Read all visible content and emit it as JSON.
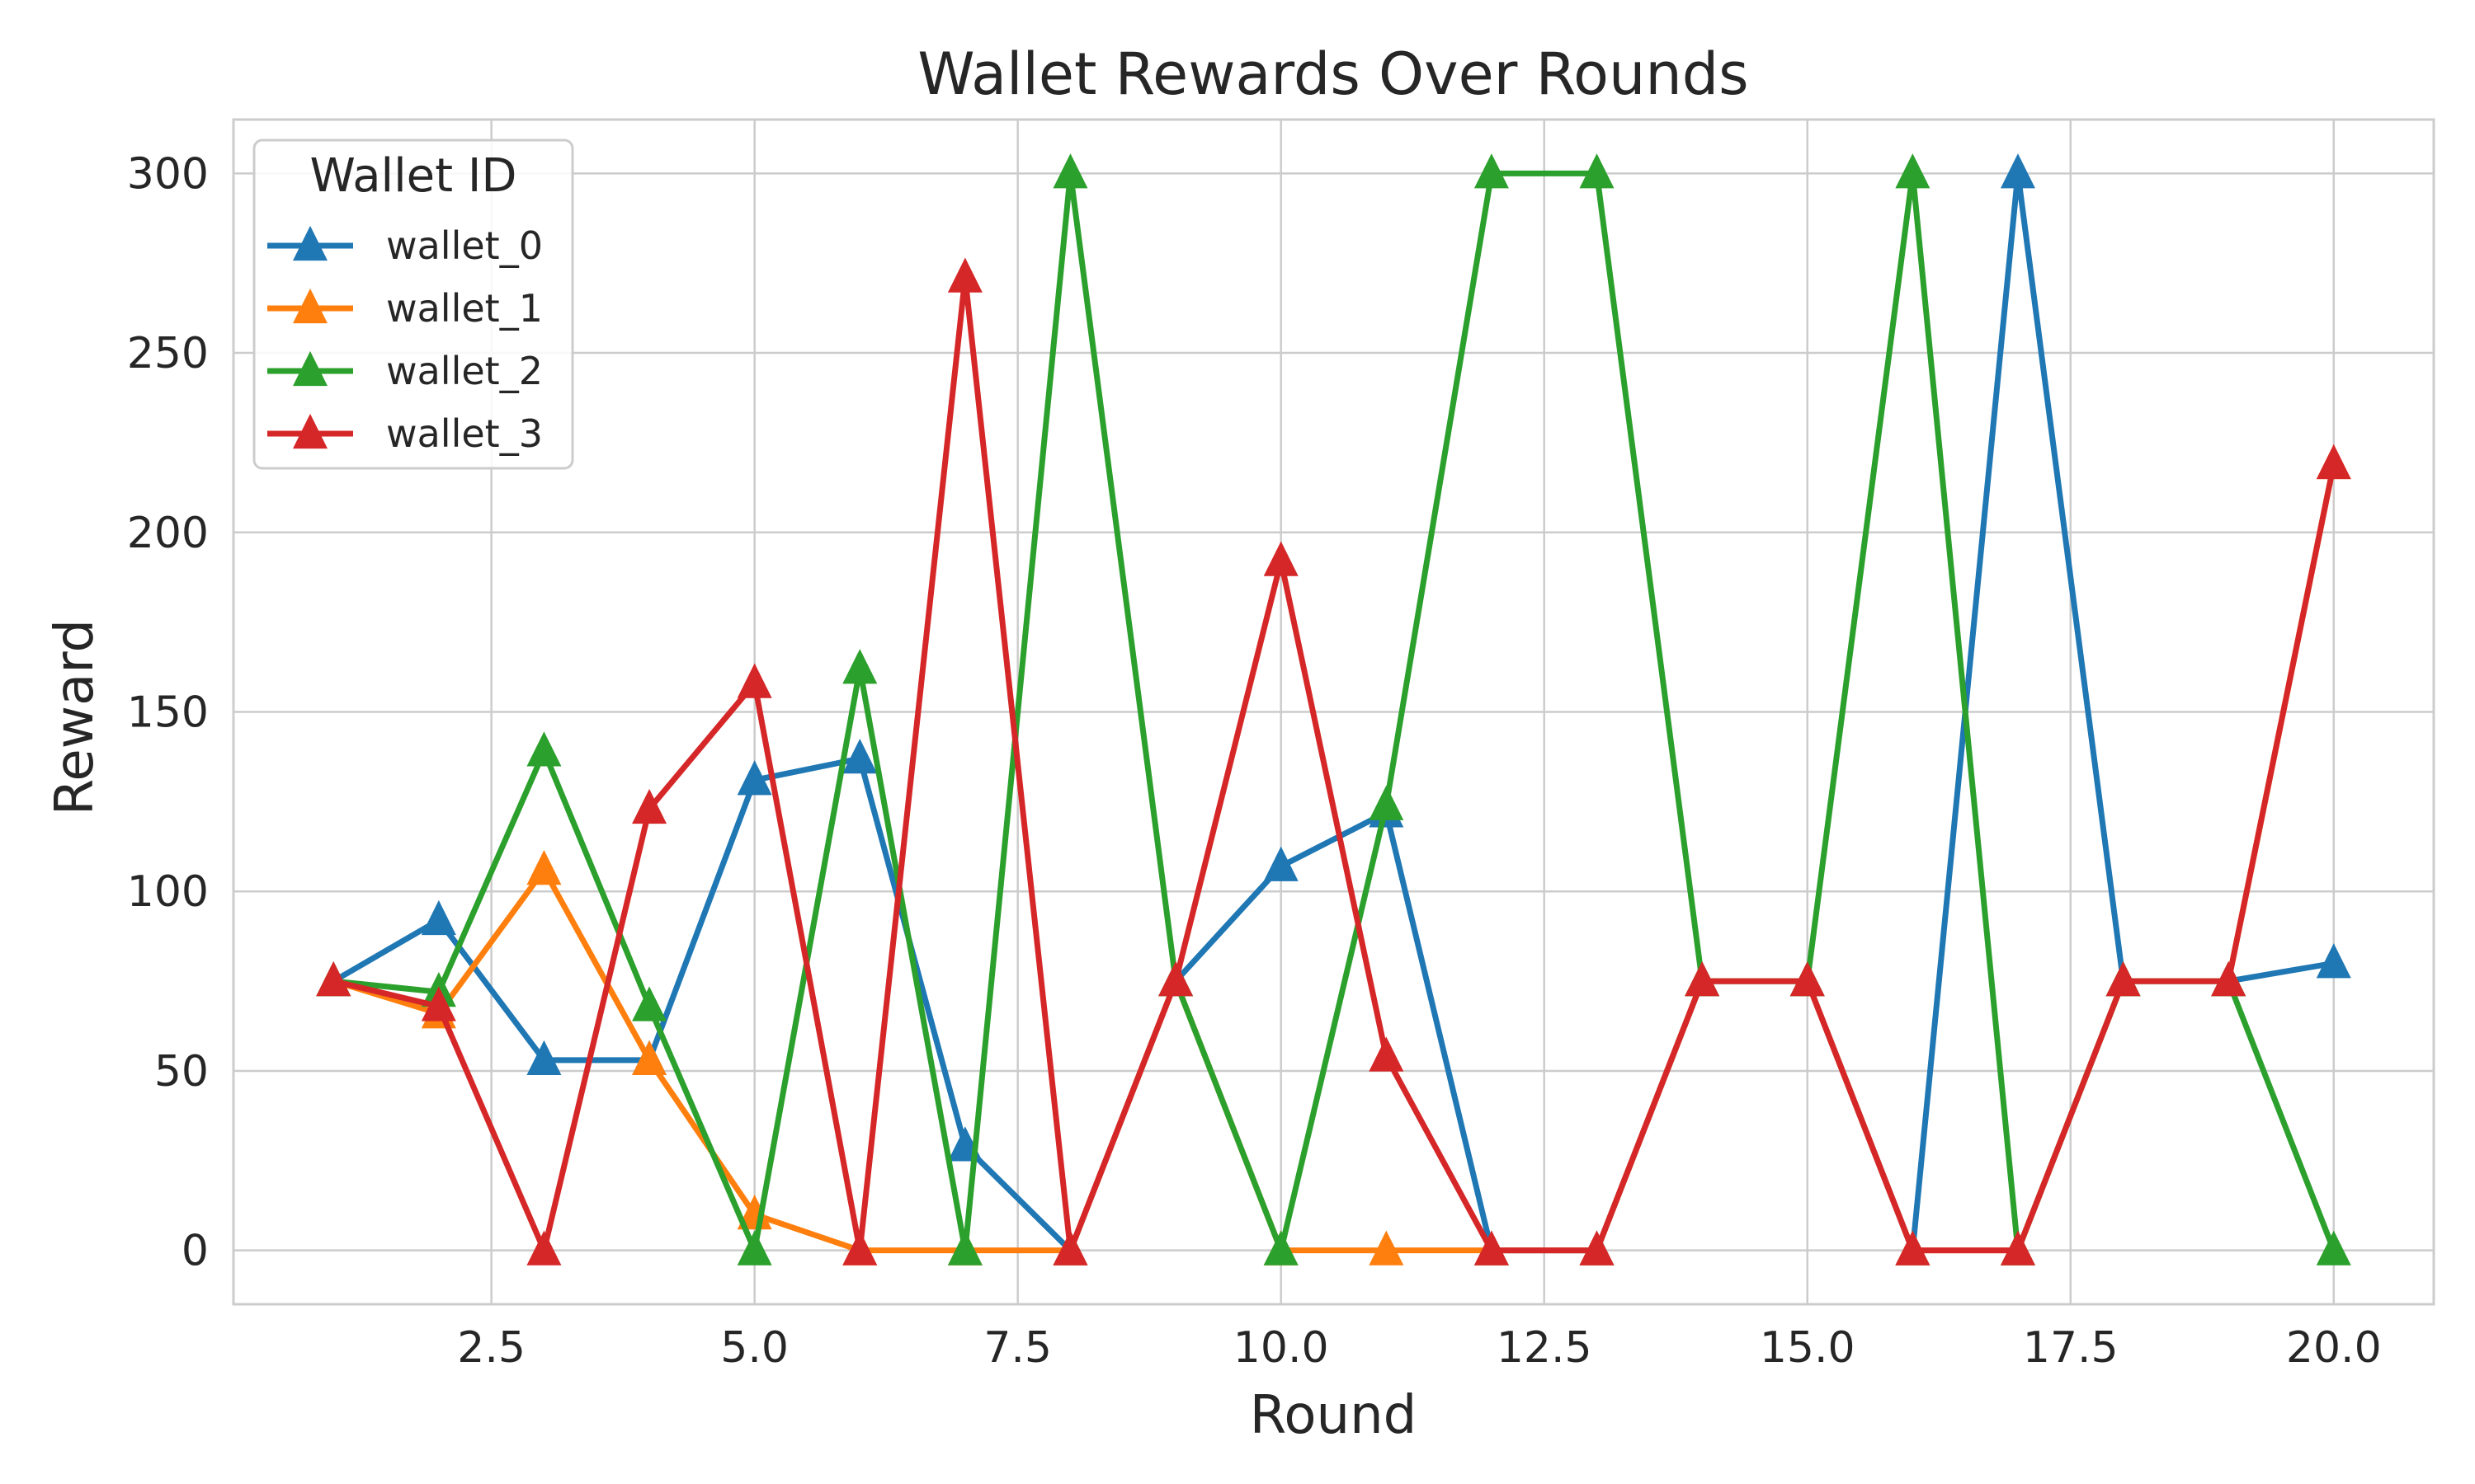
{
  "chart_data": {
    "type": "line",
    "title": "Wallet Rewards Over Rounds",
    "xlabel": "Round",
    "ylabel": "Reward",
    "xlim": [
      0.05,
      20.95
    ],
    "ylim": [
      -15,
      315
    ],
    "xticks": [
      2.5,
      5.0,
      7.5,
      10.0,
      12.5,
      15.0,
      17.5,
      20.0
    ],
    "xtick_labels": [
      "2.5",
      "5.0",
      "7.5",
      "10.0",
      "12.5",
      "15.0",
      "17.5",
      "20.0"
    ],
    "yticks": [
      0,
      50,
      100,
      150,
      200,
      250,
      300
    ],
    "ytick_labels": [
      "0",
      "50",
      "100",
      "150",
      "200",
      "250",
      "300"
    ],
    "grid": true,
    "legend": {
      "title": "Wallet ID",
      "position": "top-left"
    },
    "marker": "triangle",
    "x": [
      1,
      2,
      3,
      4,
      5,
      6,
      7,
      8,
      9,
      10,
      11,
      12,
      13,
      14,
      15,
      16,
      17,
      18,
      19,
      20
    ],
    "series": [
      {
        "name": "wallet_0",
        "color": "#1f77b4",
        "values": [
          75,
          92,
          53,
          53,
          131,
          137,
          29,
          0,
          75,
          107,
          122,
          0,
          0,
          75,
          75,
          0,
          300,
          75,
          75,
          80
        ]
      },
      {
        "name": "wallet_1",
        "color": "#ff7f0e",
        "values": [
          75,
          66,
          106,
          53,
          10,
          0,
          0,
          0,
          75,
          0,
          0,
          0,
          0,
          75,
          75,
          0,
          0,
          75,
          75,
          219
        ]
      },
      {
        "name": "wallet_2",
        "color": "#2ca02c",
        "values": [
          75,
          72,
          139,
          68,
          0,
          162,
          0,
          300,
          75,
          0,
          124,
          300,
          300,
          75,
          75,
          300,
          0,
          75,
          75,
          0
        ]
      },
      {
        "name": "wallet_3",
        "color": "#d62728",
        "values": [
          75,
          68,
          0,
          123,
          158,
          0,
          271,
          0,
          75,
          192,
          54,
          0,
          0,
          75,
          75,
          0,
          0,
          75,
          75,
          219
        ]
      }
    ]
  }
}
